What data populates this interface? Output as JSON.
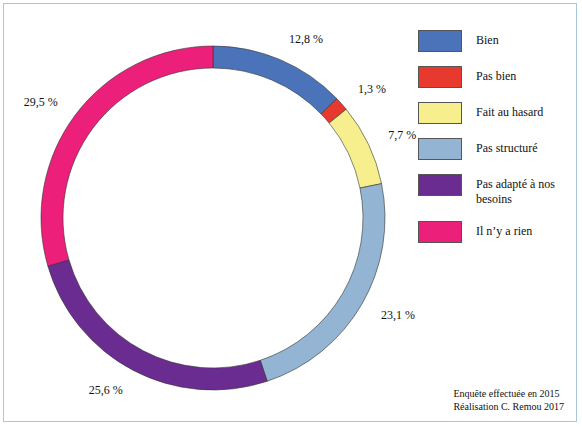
{
  "chart_data": {
    "type": "donut",
    "categories": [
      "Bien",
      "Pas bien",
      "Fait au hasard",
      "Pas structuré",
      "Pas adapté à nos besoins",
      "Il n’y a rien"
    ],
    "values": [
      12.8,
      1.3,
      7.7,
      23.1,
      25.6,
      29.5
    ],
    "value_labels": [
      "12,8 %",
      "1,3 %",
      "7,7 %",
      "23,1 %",
      "25,6 %",
      "29,5 %"
    ],
    "colors": [
      "#4a73b9",
      "#e8392e",
      "#f7ef8e",
      "#93b5d3",
      "#6b2c91",
      "#ec207a"
    ],
    "data_labels": true,
    "legend": "top-right",
    "annotations": [
      "Enquête effectuée en 2015",
      "Réalisation C. Remou 2017"
    ]
  }
}
